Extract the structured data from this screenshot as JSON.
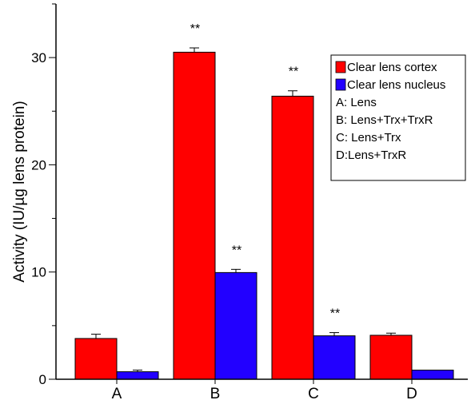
{
  "chart_data": {
    "type": "bar",
    "categories": [
      "A",
      "B",
      "C",
      "D"
    ],
    "series": [
      {
        "name": "Clear lens cortex",
        "color": "#ff0000",
        "values": [
          3.8,
          30.5,
          26.4,
          4.1
        ],
        "errors": [
          0.4,
          0.4,
          0.5,
          0.2
        ],
        "annotations": [
          "",
          "**",
          "**",
          ""
        ]
      },
      {
        "name": "Clear lens nucleus",
        "color": "#2200ff",
        "values": [
          0.7,
          9.95,
          4.05,
          0.85
        ],
        "errors": [
          0.15,
          0.3,
          0.3,
          0.0
        ],
        "annotations": [
          "",
          "**",
          "**",
          ""
        ]
      }
    ],
    "ylabel": "Activity (IU/µg lens protein)",
    "yticks": [
      0,
      10,
      20,
      30
    ],
    "ylim": [
      0,
      35
    ],
    "legend_position": "right",
    "legend_notes": [
      "A: Lens",
      "B: Lens+Trx+TrxR",
      "C: Lens+Trx",
      "D:Lens+TrxR"
    ]
  }
}
